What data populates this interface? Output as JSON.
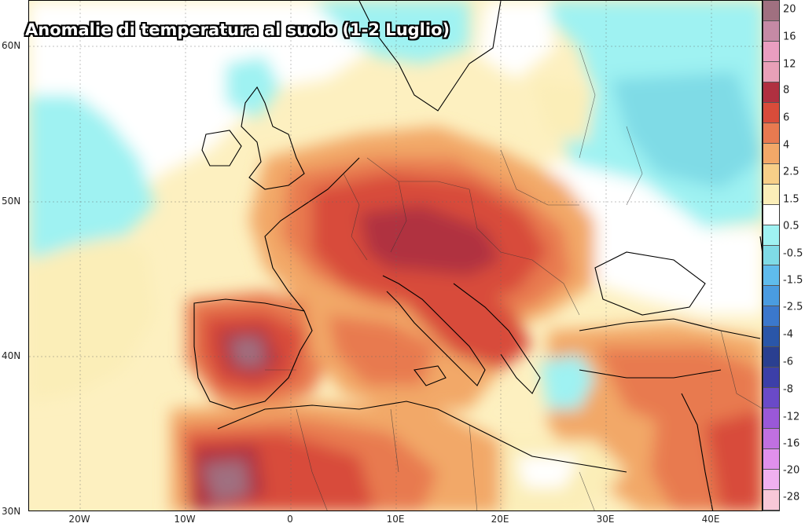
{
  "title": "Anomalie di temperatura al suolo (1-2 Luglio)",
  "lat_labels": [
    "60N",
    "50N",
    "40N",
    "30N"
  ],
  "lon_labels": [
    "20W",
    "10W",
    "0",
    "10E",
    "20E",
    "30E",
    "40E"
  ],
  "colorbar": {
    "labels": [
      "20",
      "16",
      "12",
      "8",
      "6",
      "4",
      "2.5",
      "1.5",
      "0.5",
      "-0.5",
      "-1.5",
      "-2.5",
      "-4",
      "-6",
      "-8",
      "-12",
      "-16",
      "-20",
      "-28"
    ],
    "colors": [
      "#a07080",
      "#c58aa5",
      "#e99ec0",
      "#e8a0b8",
      "#b03040",
      "#d84c3a",
      "#e87a50",
      "#f2a868",
      "#f7cf88",
      "#fbeeb8",
      "#ffffff",
      "#9ff2f2",
      "#7fdbe6",
      "#5fbcec",
      "#4a9ce0",
      "#3b78cc",
      "#2a56a8",
      "#2a3f90",
      "#3c3fa8",
      "#6a4ac8",
      "#9a58d8",
      "#c070e0",
      "#e090ec",
      "#f0b0f0",
      "#f8c8d8"
    ]
  },
  "style": {
    "land_outline": "#000000",
    "background": "#ffffff"
  }
}
